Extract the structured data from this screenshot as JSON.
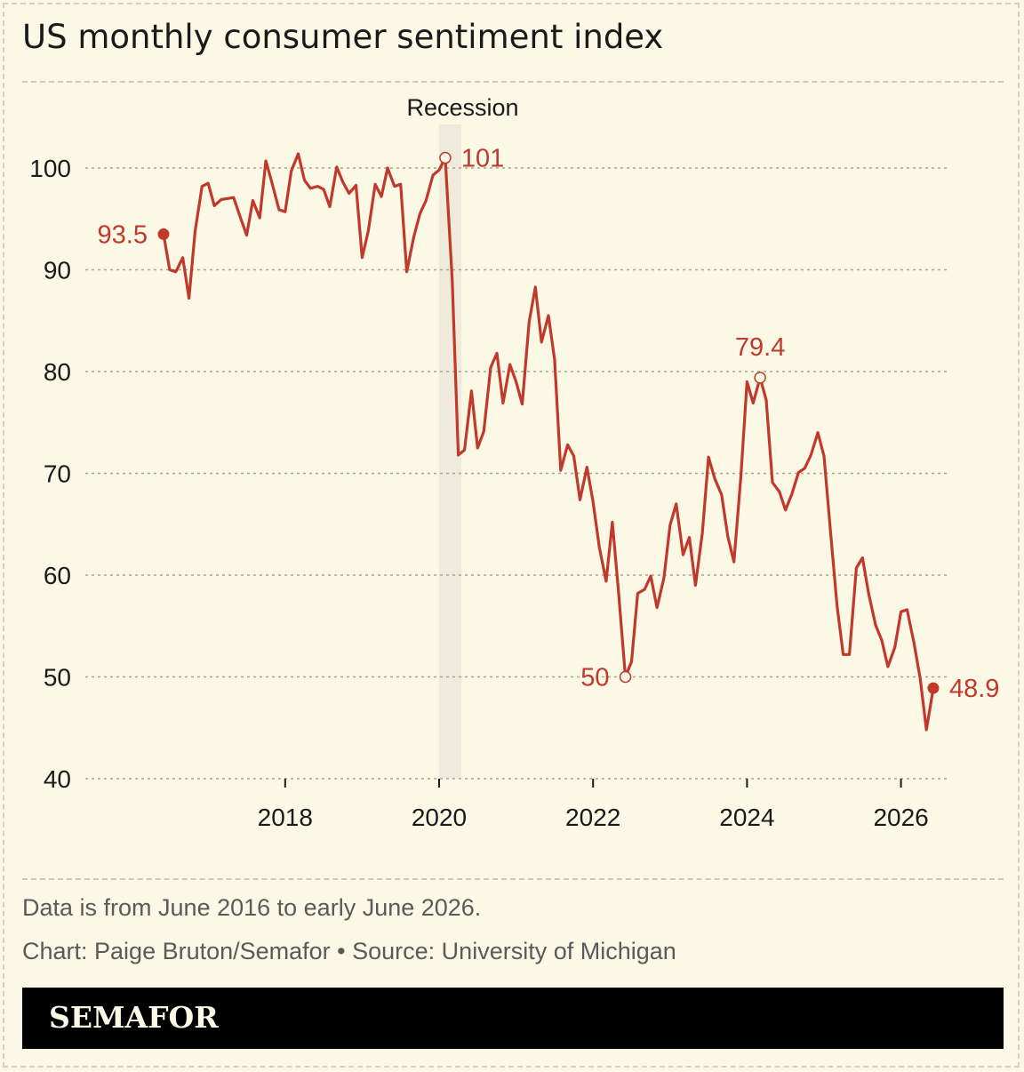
{
  "title": "US monthly consumer sentiment index",
  "notes": {
    "range": "Data is from June 2016 to early June 2026.",
    "credit": "Chart: Paige Bruton/Semafor • Source: University of Michigan"
  },
  "brand": "SEMAFOR",
  "colors": {
    "background": "#fbf8e6",
    "line": "#c0392b",
    "recession": "#efeadb",
    "grid": "#a8a496",
    "text": "#1a1a1a",
    "muted": "#5a5a5a"
  },
  "chart_data": {
    "type": "line",
    "title": "US monthly consumer sentiment index",
    "ylim": [
      40,
      100
    ],
    "yticks": [
      40,
      50,
      60,
      70,
      80,
      90,
      100
    ],
    "xticks": [
      2018,
      2020,
      2022,
      2024,
      2026
    ],
    "xlim": [
      2016.45,
      2026.5
    ],
    "grid": true,
    "recession": {
      "label": "Recession",
      "start": 2020.0,
      "end": 2020.29
    },
    "annotations": [
      {
        "x": 2016.42,
        "y": 93.5,
        "label": "93.5",
        "marker": "filled",
        "side": "left"
      },
      {
        "x": 2020.08,
        "y": 101.0,
        "label": "101",
        "marker": "open",
        "side": "right"
      },
      {
        "x": 2022.42,
        "y": 50.0,
        "label": "50",
        "marker": "open",
        "side": "left"
      },
      {
        "x": 2024.17,
        "y": 79.4,
        "label": "79.4",
        "marker": "open",
        "side": "top"
      },
      {
        "x": 2026.42,
        "y": 48.9,
        "label": "48.9",
        "marker": "filled",
        "side": "right"
      }
    ],
    "series": [
      {
        "x": [
          2016.42,
          2016.5,
          2016.58,
          2016.67,
          2016.75,
          2016.83,
          2016.92,
          2017.0,
          2017.08,
          2017.17,
          2017.25,
          2017.33,
          2017.42,
          2017.5,
          2017.58,
          2017.67,
          2017.75,
          2017.83,
          2017.92,
          2018.0,
          2018.08,
          2018.17,
          2018.25,
          2018.33,
          2018.42,
          2018.5,
          2018.58,
          2018.67,
          2018.75,
          2018.83,
          2018.92,
          2019.0,
          2019.08,
          2019.17,
          2019.25,
          2019.33,
          2019.42,
          2019.5,
          2019.58,
          2019.67,
          2019.75,
          2019.83,
          2019.92,
          2020.0,
          2020.08,
          2020.17,
          2020.25,
          2020.33,
          2020.42,
          2020.5,
          2020.58,
          2020.67,
          2020.75,
          2020.83,
          2020.92,
          2021.0,
          2021.08,
          2021.17,
          2021.25,
          2021.33,
          2021.42,
          2021.5,
          2021.58,
          2021.67,
          2021.75,
          2021.83,
          2021.92,
          2022.0,
          2022.08,
          2022.17,
          2022.25,
          2022.33,
          2022.42,
          2022.5,
          2022.58,
          2022.67,
          2022.75,
          2022.83,
          2022.92,
          2023.0,
          2023.08,
          2023.17,
          2023.25,
          2023.33,
          2023.42,
          2023.5,
          2023.58,
          2023.67,
          2023.75,
          2023.83,
          2023.92,
          2024.0,
          2024.08,
          2024.17,
          2024.25,
          2024.33,
          2024.42,
          2024.5,
          2024.58,
          2024.67,
          2024.75,
          2024.83,
          2024.92,
          2025.0,
          2025.08,
          2025.17,
          2025.25,
          2025.33,
          2025.42,
          2025.5,
          2025.58,
          2025.67,
          2025.75,
          2025.83,
          2025.92,
          2026.0,
          2026.08,
          2026.17,
          2026.25,
          2026.33,
          2026.42
        ],
        "values": [
          93.5,
          90.0,
          89.8,
          91.2,
          87.2,
          93.8,
          98.2,
          98.5,
          96.3,
          96.9,
          97.0,
          97.1,
          95.1,
          93.4,
          96.8,
          95.1,
          100.7,
          98.5,
          95.9,
          95.7,
          99.7,
          101.4,
          98.8,
          98.0,
          98.2,
          97.9,
          96.2,
          100.1,
          98.6,
          97.5,
          98.3,
          91.2,
          93.8,
          98.4,
          97.2,
          100.0,
          98.2,
          98.4,
          89.8,
          93.2,
          95.5,
          96.8,
          99.3,
          99.8,
          101.0,
          89.1,
          71.8,
          72.3,
          78.1,
          72.5,
          74.1,
          80.4,
          81.8,
          76.9,
          80.7,
          79.0,
          76.8,
          84.9,
          88.3,
          82.9,
          85.5,
          81.2,
          70.3,
          72.8,
          71.7,
          67.4,
          70.6,
          67.2,
          62.8,
          59.4,
          65.2,
          58.4,
          50.0,
          51.5,
          58.2,
          58.6,
          59.9,
          56.8,
          59.7,
          64.9,
          67.0,
          62.0,
          63.7,
          59.0,
          64.2,
          71.6,
          69.5,
          67.9,
          63.8,
          61.3,
          69.7,
          79.0,
          76.9,
          79.4,
          77.2,
          69.1,
          68.2,
          66.4,
          67.9,
          70.1,
          70.5,
          71.8,
          74.0,
          71.7,
          64.7,
          57.0,
          52.2,
          52.2,
          60.7,
          61.7,
          58.2,
          55.1,
          53.6,
          51.0,
          52.9,
          56.4,
          56.6,
          53.3,
          49.8,
          44.8,
          48.9
        ]
      }
    ]
  }
}
